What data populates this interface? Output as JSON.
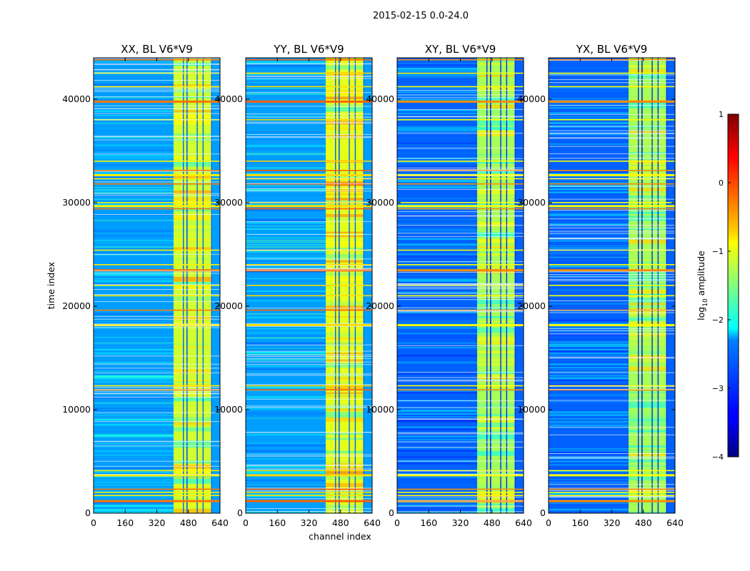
{
  "figure_title": "2015-02-15 0.0-24.0",
  "chart_data": {
    "type": "heatmap",
    "colormap": "jet",
    "shared": {
      "xlabel": "channel index",
      "ylabel": "time index",
      "xlim": [
        0,
        640
      ],
      "ylim": [
        0,
        44000
      ],
      "xticks": [
        0,
        160,
        320,
        480,
        640
      ],
      "xtick_labels": [
        "0",
        "160",
        "320",
        "480",
        "640"
      ],
      "yticks": [
        0,
        10000,
        20000,
        30000,
        40000
      ],
      "ytick_labels": [
        "0",
        "10000",
        "20000",
        "30000",
        "40000"
      ],
      "y_tick_label_spill_note": "interior panels show clipped labels",
      "high_amplitude_band_channels": [
        405,
        600
      ],
      "band_gap_channels": [
        [
          452,
          457
        ],
        [
          470,
          476
        ],
        [
          522,
          527
        ],
        [
          552,
          557
        ],
        [
          595,
          600
        ]
      ],
      "flagged_time_rows": [
        1200,
        1700,
        2000,
        2300,
        3700,
        4100,
        11900,
        12300,
        18200,
        19600,
        21000,
        22000,
        23500,
        24000,
        25400,
        29400,
        29700,
        30000,
        31800,
        32300,
        32700,
        33100,
        34000,
        38000,
        39800,
        41200,
        42500,
        43800
      ]
    },
    "panels": [
      {
        "title": "XX, BL V6*V9",
        "background_level": -2.6,
        "band_level": -1.1,
        "hot_rows_level": -0.2
      },
      {
        "title": "YY, BL V6*V9",
        "background_level": -2.6,
        "band_level": -1.0,
        "hot_rows_level": -0.1
      },
      {
        "title": "XY, BL V6*V9",
        "background_level": -2.9,
        "band_level": -1.3,
        "hot_rows_level": -0.3
      },
      {
        "title": "YX, BL V6*V9",
        "background_level": -2.9,
        "band_level": -1.3,
        "hot_rows_level": -0.3
      }
    ],
    "colorbar": {
      "label_prefix": "log",
      "label_sub": "10",
      "label_suffix": " amplitude",
      "range": [
        -4,
        1
      ],
      "ticks": [
        "1",
        "0",
        "−1",
        "−2",
        "−3",
        "−4"
      ]
    }
  }
}
